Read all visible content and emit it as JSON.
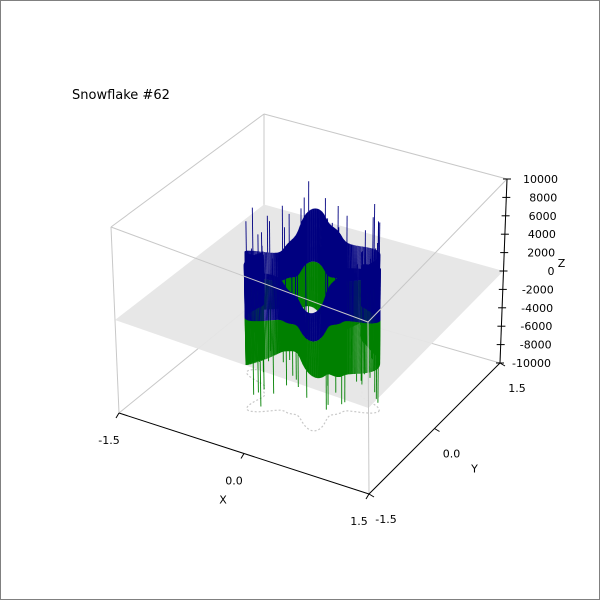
{
  "chart_data": {
    "type": "surface3d",
    "title": "Snowflake #62",
    "xlabel": "X",
    "ylabel": "Y",
    "zlabel": "Z",
    "xlim": [
      -1.5,
      1.5
    ],
    "ylim": [
      -1.5,
      1.5
    ],
    "zlim": [
      -10000,
      10000
    ],
    "x_ticks": [
      "-1.5",
      "0.0",
      "1.5"
    ],
    "y_ticks": [
      "-1.5",
      "0.0",
      "1.5"
    ],
    "z_ticks": [
      "-10000",
      "-8000",
      "-6000",
      "-4000",
      "-2000",
      "0",
      "2000",
      "4000",
      "6000",
      "8000",
      "10000"
    ],
    "grid": false,
    "colors": {
      "upper_surface": "#000080",
      "lower_surface": "#008000",
      "plane": "#e6e6e6",
      "shadow": "#c8c8c8",
      "box_edge": "#c8c8c8"
    },
    "series": [
      {
        "surface": "snowflake-boundary",
        "point_count": 720,
        "height_range": [
          -6000,
          6000
        ],
        "spike_range": [
          -9500,
          9000
        ],
        "symmetry": 6
      }
    ]
  }
}
